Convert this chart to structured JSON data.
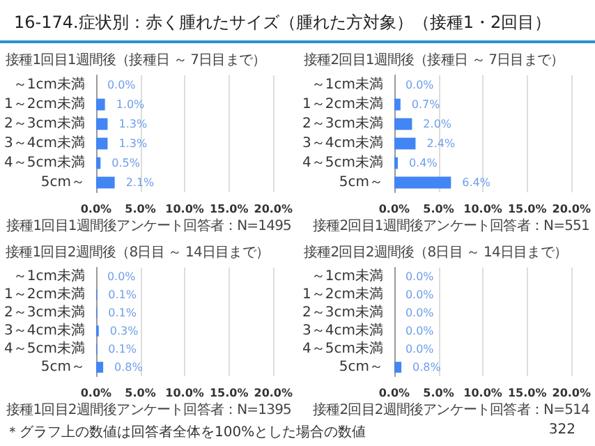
{
  "chart_data": [
    {
      "type": "bar",
      "orientation": "horizontal",
      "title": "16-174.症状別：赤く腫れたサイズ（腫れた方対象）（接種1・2回目）",
      "subtitle": "接種1回目1週間後（接種日 ～ 7日目まで）",
      "categories": [
        "～1cm未満",
        "1～2cm未満",
        "2～3cm未満",
        "3～4cm未満",
        "4～5cm未満",
        "5cm～"
      ],
      "values": [
        0.0,
        1.0,
        1.3,
        1.3,
        0.5,
        2.1
      ],
      "value_labels": [
        "0.0%",
        "1.0%",
        "1.3%",
        "1.3%",
        "0.5%",
        "2.1%"
      ],
      "color": "#4285f4",
      "xlim": [
        0,
        20
      ],
      "xticks": [
        {
          "value": 0,
          "label": "0.0%"
        },
        {
          "value": 5,
          "label": "5.0%"
        },
        {
          "value": 10,
          "label": "10.0%"
        },
        {
          "value": 15,
          "label": "15.0%"
        },
        {
          "value": 20,
          "label": "20.0%"
        }
      ],
      "grid": "x",
      "annotations": [
        "接種1回目1週間後アンケート回答者：N=1495"
      ]
    },
    {
      "type": "bar",
      "orientation": "horizontal",
      "title": "接種2回目1週間後（接種日 ～ 7日目まで）",
      "categories": [
        "～1cm未満",
        "1～2cm未満",
        "2～3cm未満",
        "3～4cm未満",
        "4～5cm未満",
        "5cm～"
      ],
      "values": [
        0.0,
        0.7,
        2.0,
        2.4,
        0.4,
        6.4
      ],
      "value_labels": [
        "0.0%",
        "0.7%",
        "2.0%",
        "2.4%",
        "0.4%",
        "6.4%"
      ],
      "color": "#4285f4",
      "xlim": [
        0,
        20
      ],
      "xticks": [
        {
          "value": 0,
          "label": "0.0%"
        },
        {
          "value": 5,
          "label": "5.0%"
        },
        {
          "value": 10,
          "label": "10.0%"
        },
        {
          "value": 15,
          "label": "15.0%"
        },
        {
          "value": 20,
          "label": "20.0%"
        }
      ],
      "grid": "x",
      "annotations": [
        "接種2回目1週間後アンケート回答者：N=551"
      ]
    },
    {
      "type": "bar",
      "orientation": "horizontal",
      "title": "接種1回目2週間後（8日目 ～ 14日目まで）",
      "categories": [
        "～1cm未満",
        "1～2cm未満",
        "2～3cm未満",
        "3～4cm未満",
        "4～5cm未満",
        "5cm～"
      ],
      "values": [
        0.0,
        0.1,
        0.1,
        0.3,
        0.1,
        0.8
      ],
      "value_labels": [
        "0.0%",
        "0.1%",
        "0.1%",
        "0.3%",
        "0.1%",
        "0.8%"
      ],
      "color": "#4285f4",
      "xlim": [
        0,
        20
      ],
      "xticks": [
        {
          "value": 0,
          "label": "0.0%"
        },
        {
          "value": 5,
          "label": "5.0%"
        },
        {
          "value": 10,
          "label": "10.0%"
        },
        {
          "value": 15,
          "label": "15.0%"
        },
        {
          "value": 20,
          "label": "20.0%"
        }
      ],
      "grid": "x",
      "annotations": [
        "接種1回目2週間後アンケート回答者：N=1395"
      ]
    },
    {
      "type": "bar",
      "orientation": "horizontal",
      "title": "接種2回目2週間後（8日目 ～ 14日目まで）",
      "categories": [
        "～1cm未満",
        "1～2cm未満",
        "2～3cm未満",
        "3～4cm未満",
        "4～5cm未満",
        "5cm～"
      ],
      "values": [
        0.0,
        0.0,
        0.0,
        0.0,
        0.0,
        0.8
      ],
      "value_labels": [
        "0.0%",
        "0.0%",
        "0.0%",
        "0.0%",
        "0.0%",
        "0.8%"
      ],
      "color": "#4285f4",
      "xlim": [
        0,
        20
      ],
      "xticks": [
        {
          "value": 0,
          "label": "0.0%"
        },
        {
          "value": 5,
          "label": "5.0%"
        },
        {
          "value": 10,
          "label": "10.0%"
        },
        {
          "value": 15,
          "label": "15.0%"
        },
        {
          "value": 20,
          "label": "20.0%"
        }
      ],
      "grid": "x",
      "annotations": [
        "接種2回目2週間後アンケート回答者：N=514",
        "＊グラフ上の数値は回答者全体を100%とした場合の数値",
        "322"
      ]
    }
  ]
}
